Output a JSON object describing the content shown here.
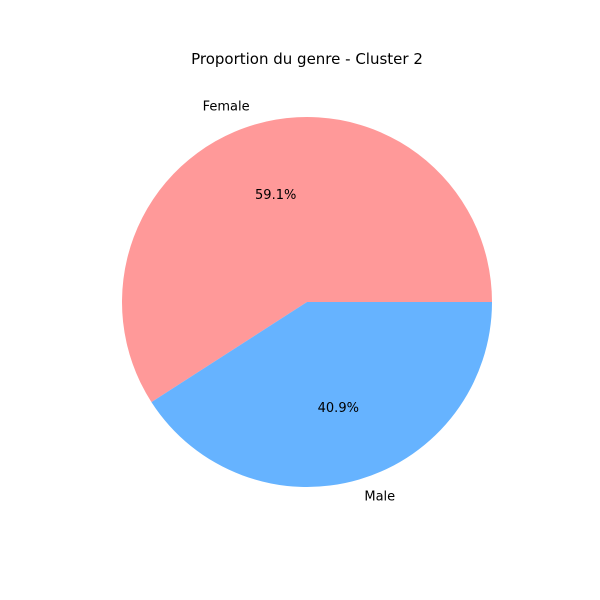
{
  "chart_data": {
    "type": "pie",
    "title": "Proportion du genre - Cluster 2",
    "slices": [
      {
        "label": "Female",
        "value": 59.1,
        "pct_label": "59.1%",
        "color": "#ff9999"
      },
      {
        "label": "Male",
        "value": 40.9,
        "pct_label": "40.9%",
        "color": "#66b3ff"
      }
    ],
    "legend": "none"
  }
}
